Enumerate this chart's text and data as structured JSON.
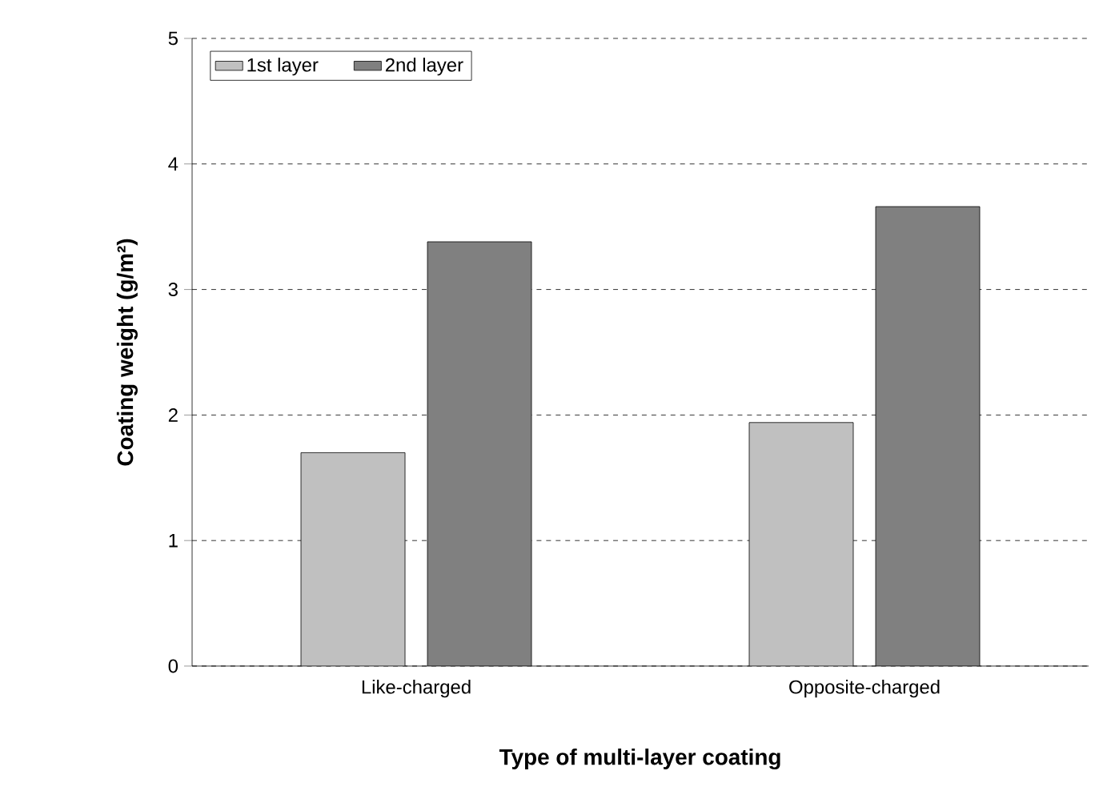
{
  "chart_data": {
    "type": "bar",
    "xlabel": "Type of multi-layer coating",
    "ylabel": "Coating weight (g/m²)",
    "categories": [
      "Like-charged",
      "Opposite-charged"
    ],
    "series": [
      {
        "name": "1st layer",
        "color": "#c0c0c0",
        "values": [
          1.7,
          1.94
        ]
      },
      {
        "name": "2nd layer",
        "color": "#808080",
        "values": [
          3.38,
          3.66
        ]
      }
    ],
    "ylim": [
      0,
      5
    ],
    "yticks": [
      0,
      1,
      2,
      3,
      4,
      5
    ],
    "grid": "y",
    "legend": "top left"
  }
}
